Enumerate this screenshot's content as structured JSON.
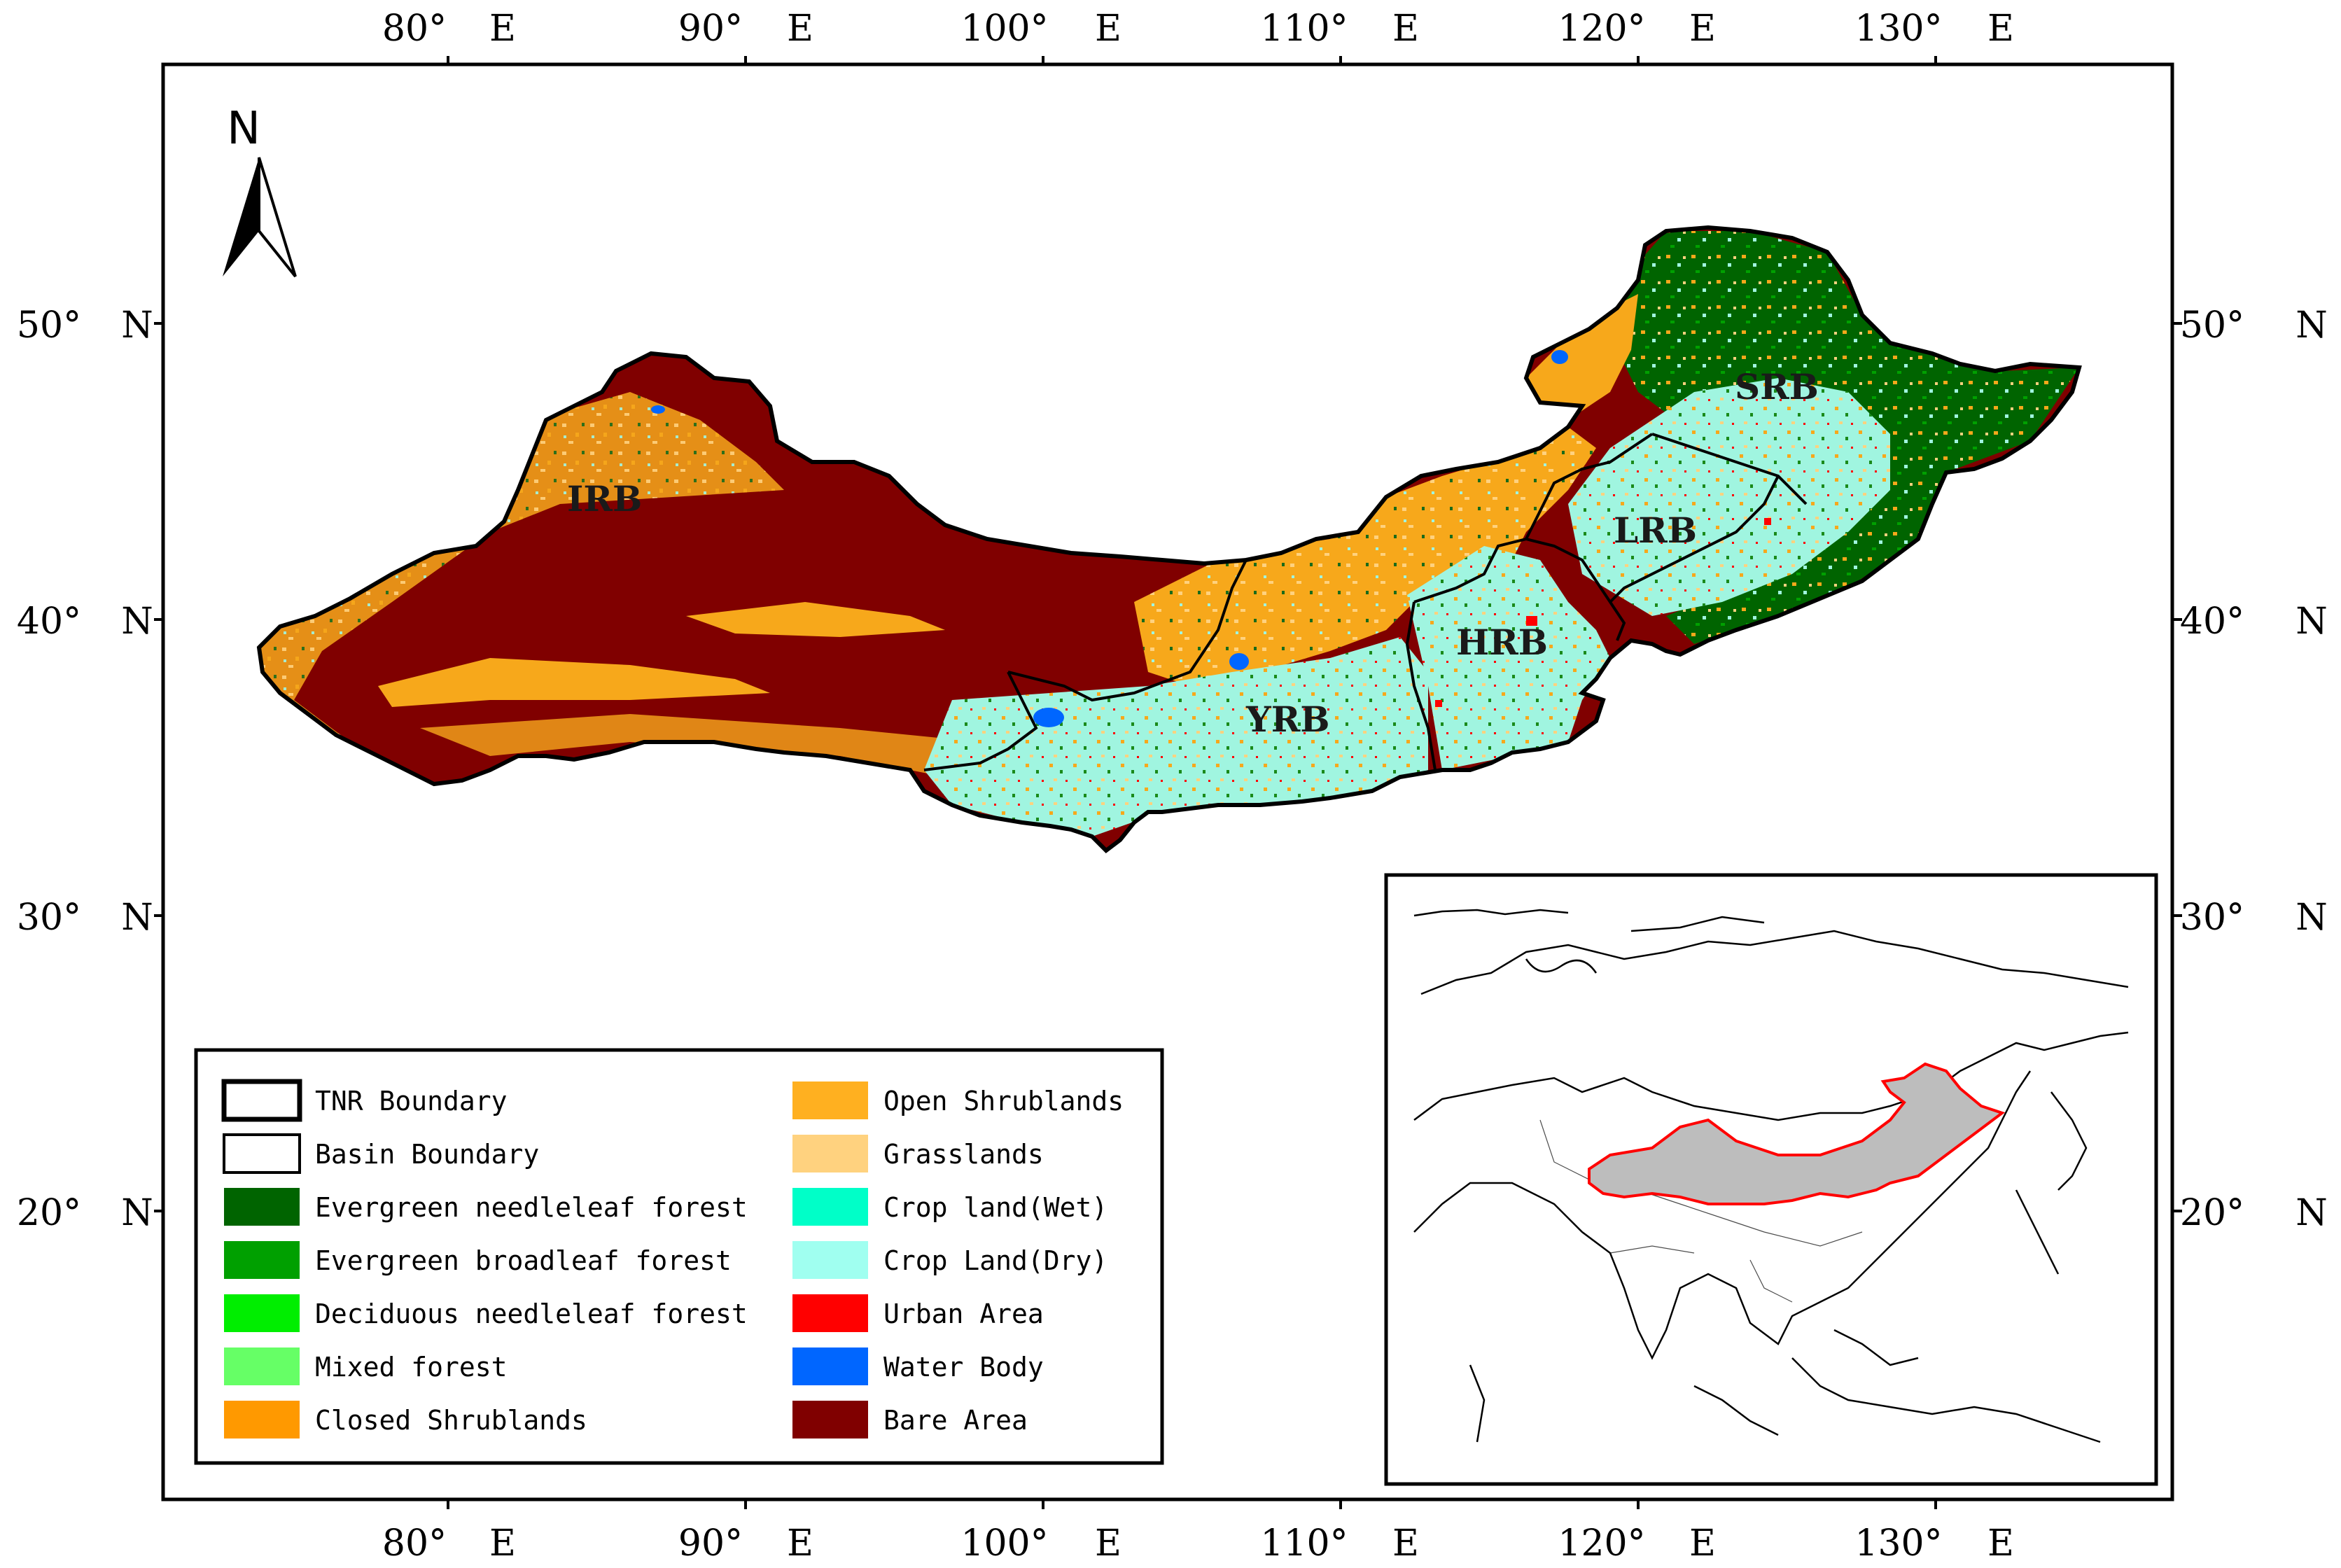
{
  "map": {
    "north_label": "N",
    "top_ticks": [
      {
        "deg": "80°",
        "dir": "E"
      },
      {
        "deg": "90°",
        "dir": "E"
      },
      {
        "deg": "100°",
        "dir": "E"
      },
      {
        "deg": "110°",
        "dir": "E"
      },
      {
        "deg": "120°",
        "dir": "E"
      },
      {
        "deg": "130°",
        "dir": "E"
      }
    ],
    "bottom_ticks": [
      {
        "deg": "80°",
        "dir": "E"
      },
      {
        "deg": "90°",
        "dir": "E"
      },
      {
        "deg": "100°",
        "dir": "E"
      },
      {
        "deg": "110°",
        "dir": "E"
      },
      {
        "deg": "120°",
        "dir": "E"
      },
      {
        "deg": "130°",
        "dir": "E"
      }
    ],
    "left_ticks": [
      {
        "deg": "50°",
        "dir": "N"
      },
      {
        "deg": "40°",
        "dir": "N"
      },
      {
        "deg": "30°",
        "dir": "N"
      },
      {
        "deg": "20°",
        "dir": "N"
      }
    ],
    "right_ticks": [
      {
        "deg": "50°",
        "dir": "N"
      },
      {
        "deg": "40°",
        "dir": "N"
      },
      {
        "deg": "30°",
        "dir": "N"
      },
      {
        "deg": "20°",
        "dir": "N"
      }
    ],
    "basins": {
      "irb": "IRB",
      "yrb": "YRB",
      "hrb": "HRB",
      "lrb": "LRB",
      "srb": "SRB"
    },
    "colors": {
      "bare_area": "#800000",
      "open_shrublands": "#f7a81b",
      "grasslands": "#ffd27f",
      "evergreen_needleleaf": "#006400",
      "crop_dry": "#a0f5e0",
      "urban": "#ff0000",
      "water": "#0066ff",
      "inset_region": "#bdbdbd",
      "inset_outline": "#ff0000"
    }
  },
  "legend": {
    "left": [
      {
        "label": "TNR Boundary",
        "swatch": "#ffffff",
        "outline": "thick"
      },
      {
        "label": "Basin Boundary",
        "swatch": "#ffffff",
        "outline": "thin"
      },
      {
        "label": "Evergreen needleleaf forest",
        "swatch": "#006400"
      },
      {
        "label": "Evergreen broadleaf forest",
        "swatch": "#00a000"
      },
      {
        "label": "Deciduous needleleaf forest",
        "swatch": "#00ee00"
      },
      {
        "label": "Mixed forest",
        "swatch": "#66ff66"
      },
      {
        "label": "Closed Shrublands",
        "swatch": "#ff9900"
      }
    ],
    "right": [
      {
        "label": "Open Shrublands",
        "swatch": "#ffb020"
      },
      {
        "label": "Grasslands",
        "swatch": "#ffd27f"
      },
      {
        "label": "Crop land(Wet)",
        "swatch": "#00ffc8"
      },
      {
        "label": "Crop Land(Dry)",
        "swatch": "#a0fff0"
      },
      {
        "label": "Urban Area",
        "swatch": "#ff0000"
      },
      {
        "label": "Water Body",
        "swatch": "#0066ff"
      },
      {
        "label": "Bare Area",
        "swatch": "#800000"
      }
    ]
  }
}
